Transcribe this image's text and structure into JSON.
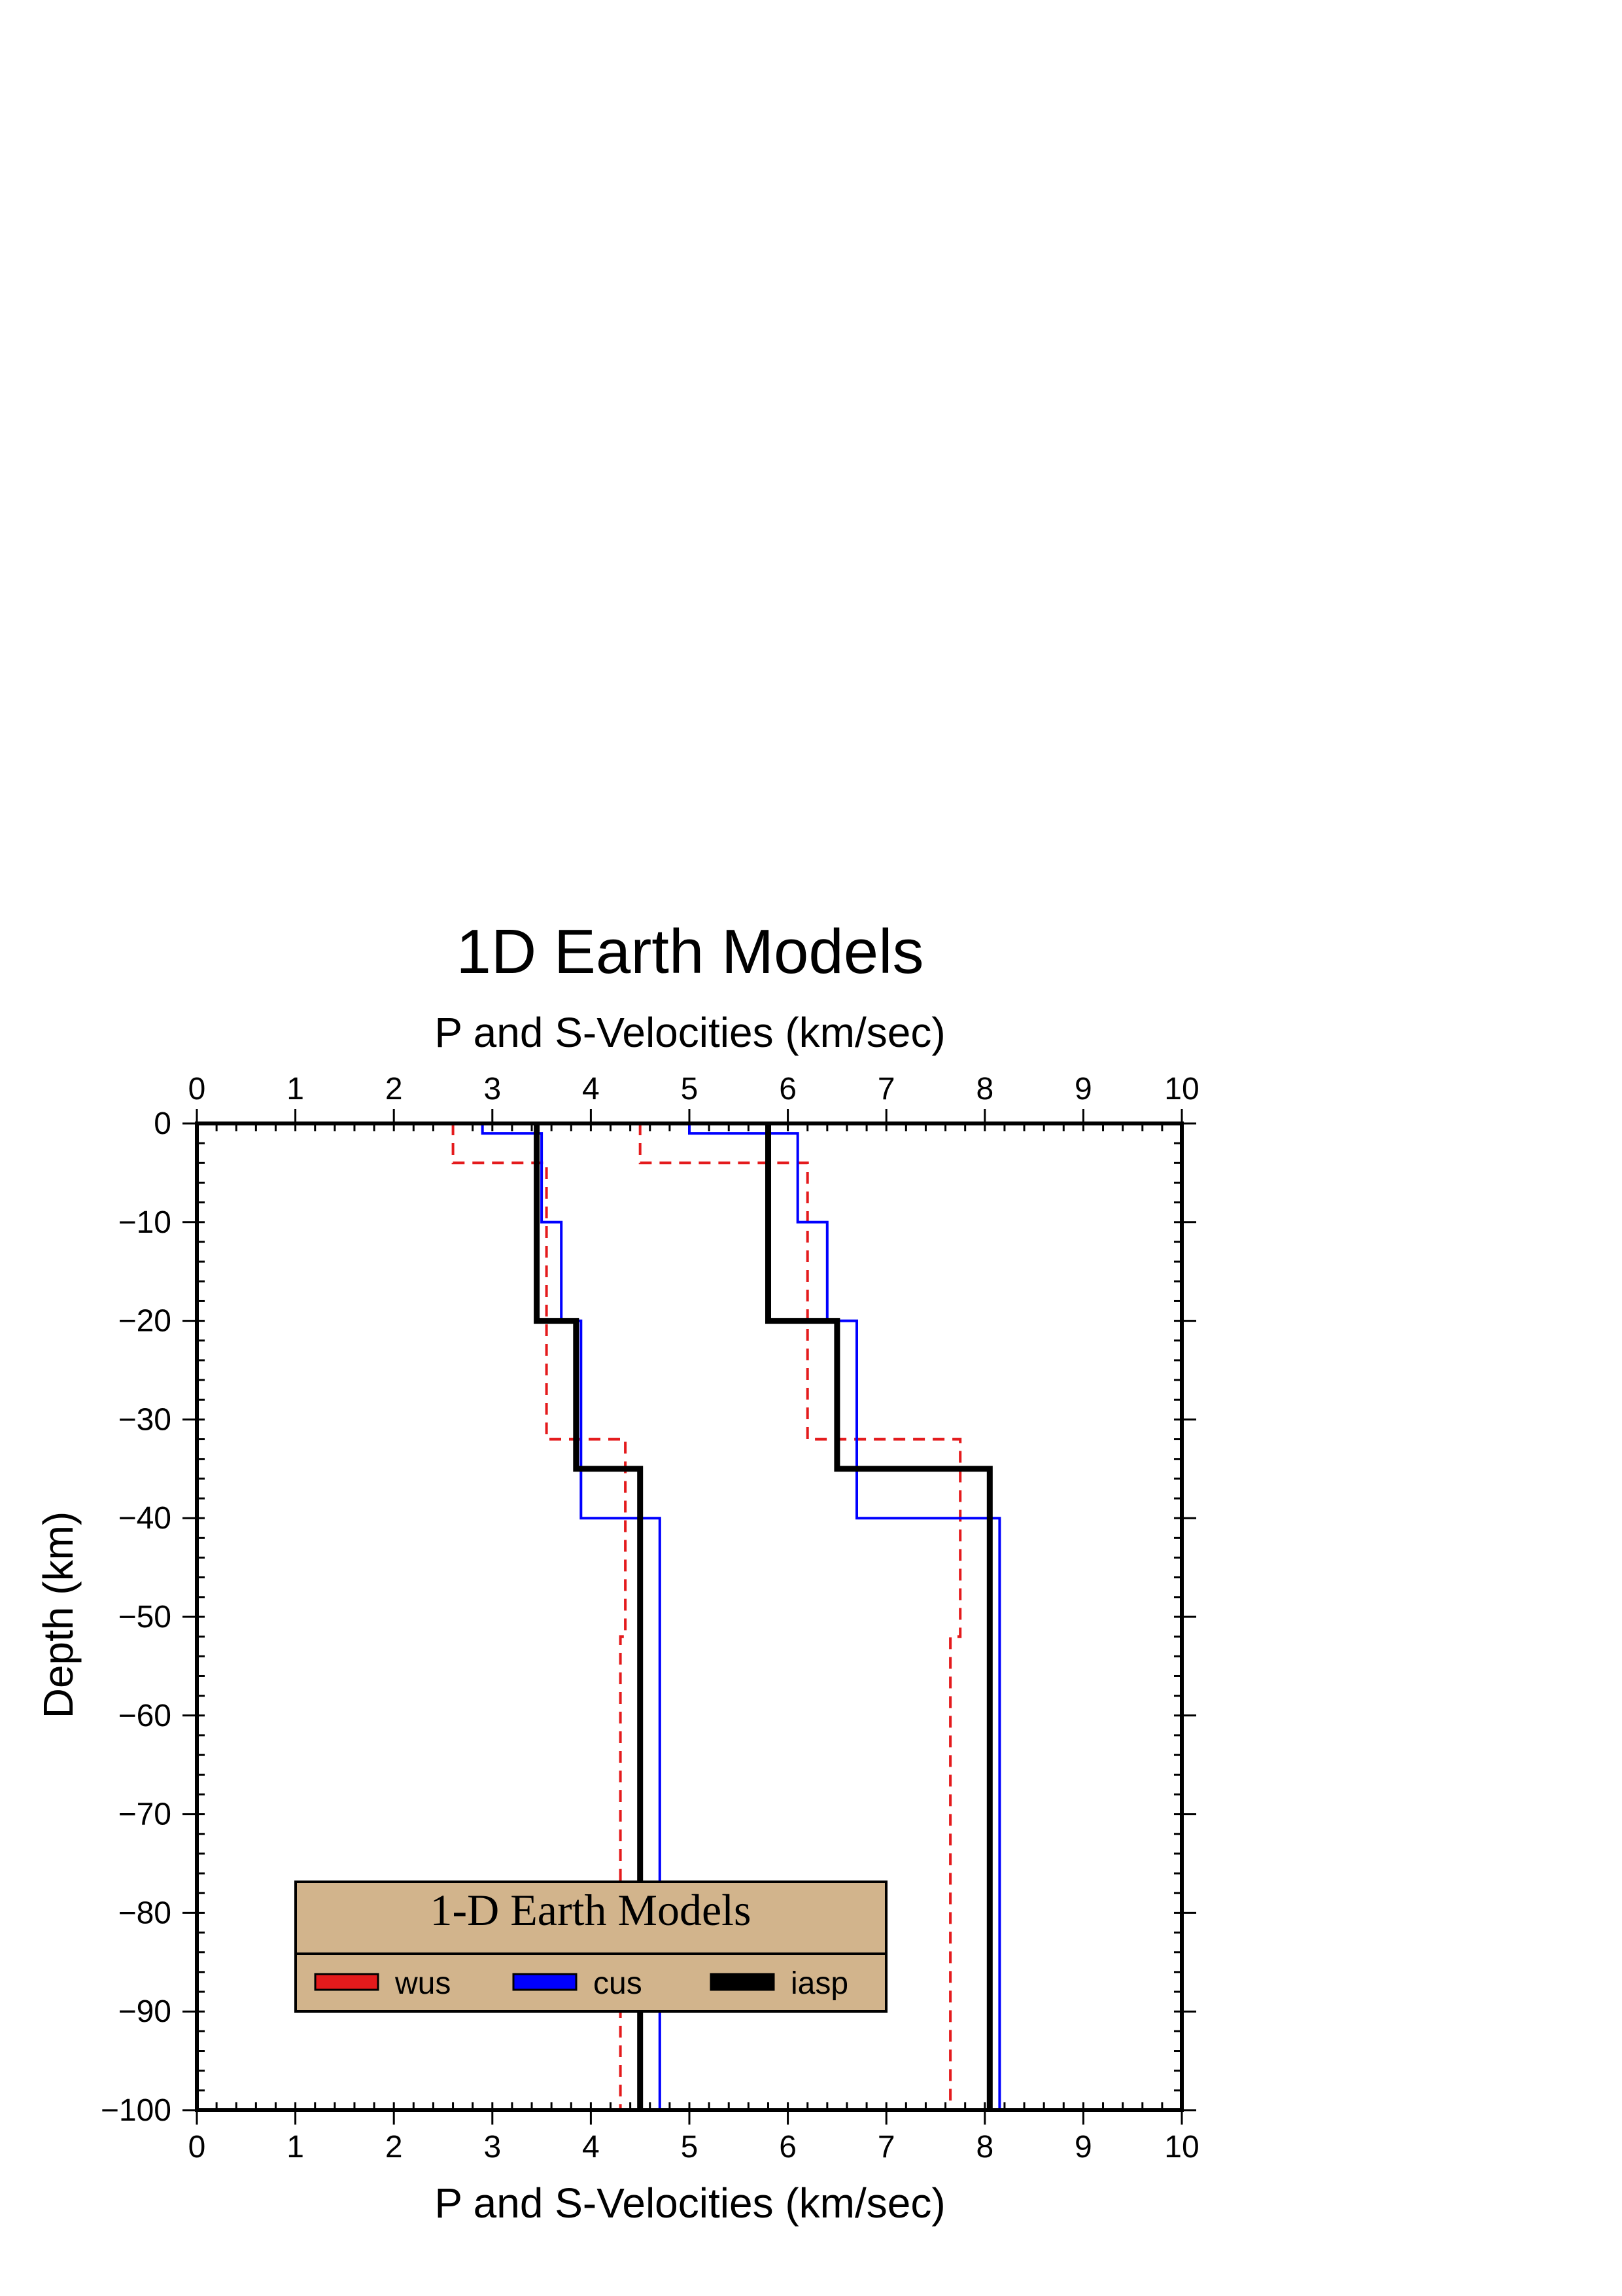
{
  "chart_data": {
    "type": "line",
    "title": "1D Earth Models",
    "xlabel": "P and S-Velocities (km/sec)",
    "ylabel": "Depth (km)",
    "xlim": [
      0,
      10
    ],
    "ylim": [
      -100,
      0
    ],
    "x_ticks": [
      "0",
      "1",
      "2",
      "3",
      "4",
      "5",
      "6",
      "7",
      "8",
      "9",
      "10"
    ],
    "y_ticks": [
      "0",
      "−10",
      "−20",
      "−30",
      "−40",
      "−50",
      "−60",
      "−70",
      "−80",
      "−90",
      "−100"
    ],
    "x_tick_values": [
      0,
      1,
      2,
      3,
      4,
      5,
      6,
      7,
      8,
      9,
      10
    ],
    "y_tick_values": [
      0,
      -10,
      -20,
      -30,
      -40,
      -50,
      -60,
      -70,
      -80,
      -90,
      -100
    ],
    "legend": {
      "title": "1-D Earth Models",
      "placement": "bottom-left",
      "background": "#D2B48C"
    },
    "series": [
      {
        "name": "wus",
        "color": "#E41A1C",
        "style": "dashed",
        "lines": [
          {
            "phase": "S",
            "points": [
              [
                2.6,
                0
              ],
              [
                2.6,
                -4
              ],
              [
                3.55,
                -4
              ],
              [
                3.55,
                -32
              ],
              [
                4.35,
                -32
              ],
              [
                4.35,
                -52
              ],
              [
                4.3,
                -52
              ],
              [
                4.3,
                -100
              ]
            ]
          },
          {
            "phase": "P",
            "points": [
              [
                4.5,
                0
              ],
              [
                4.5,
                -4
              ],
              [
                6.2,
                -4
              ],
              [
                6.2,
                -32
              ],
              [
                7.75,
                -32
              ],
              [
                7.75,
                -52
              ],
              [
                7.65,
                -52
              ],
              [
                7.65,
                -100
              ]
            ]
          }
        ]
      },
      {
        "name": "cus",
        "color": "#0000FF",
        "style": "solid",
        "lines": [
          {
            "phase": "S",
            "points": [
              [
                2.9,
                0
              ],
              [
                2.9,
                -1
              ],
              [
                3.5,
                -1
              ],
              [
                3.5,
                -10
              ],
              [
                3.7,
                -10
              ],
              [
                3.7,
                -20
              ],
              [
                3.9,
                -20
              ],
              [
                3.9,
                -40
              ],
              [
                4.7,
                -40
              ],
              [
                4.7,
                -100
              ]
            ]
          },
          {
            "phase": "P",
            "points": [
              [
                5.0,
                0
              ],
              [
                5.0,
                -1
              ],
              [
                6.1,
                -1
              ],
              [
                6.1,
                -10
              ],
              [
                6.4,
                -10
              ],
              [
                6.4,
                -20
              ],
              [
                6.7,
                -20
              ],
              [
                6.7,
                -40
              ],
              [
                8.15,
                -40
              ],
              [
                8.15,
                -100
              ]
            ]
          }
        ]
      },
      {
        "name": "iasp",
        "color": "#000000",
        "style": "solid-thick",
        "lines": [
          {
            "phase": "S",
            "points": [
              [
                3.45,
                0
              ],
              [
                3.45,
                -20
              ],
              [
                3.85,
                -20
              ],
              [
                3.85,
                -35
              ],
              [
                4.5,
                -35
              ],
              [
                4.5,
                -100
              ]
            ]
          },
          {
            "phase": "P",
            "points": [
              [
                5.8,
                0
              ],
              [
                5.8,
                -20
              ],
              [
                6.5,
                -20
              ],
              [
                6.5,
                -35
              ],
              [
                8.05,
                -35
              ],
              [
                8.05,
                -100
              ]
            ]
          }
        ]
      }
    ]
  }
}
